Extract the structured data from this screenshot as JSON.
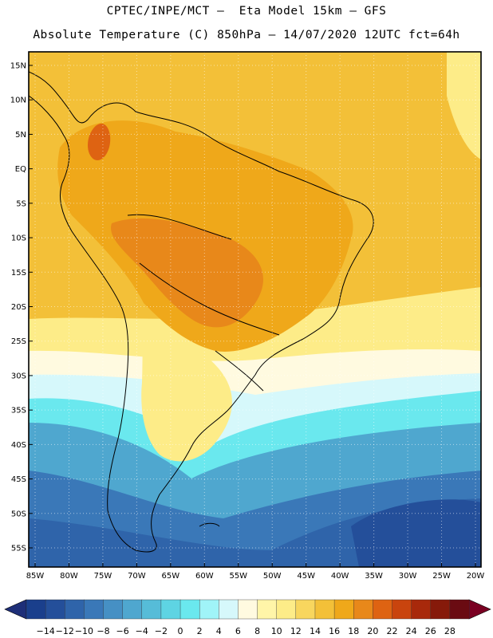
{
  "title_line1": "CPTEC/INPE/MCT –  Eta Model 15km – GFS",
  "title_line2": "Absolute Temperature (C) 850hPa – 14/07/2020 12UTC fct=64h",
  "map": {
    "lat_labels": [
      "15N",
      "10N",
      "5N",
      "EQ",
      "5S",
      "10S",
      "15S",
      "20S",
      "25S",
      "30S",
      "35S",
      "40S",
      "45S",
      "50S",
      "55S"
    ],
    "lon_labels": [
      "85W",
      "80W",
      "75W",
      "70W",
      "65W",
      "60W",
      "55W",
      "50W",
      "45W",
      "40W",
      "35W",
      "30W",
      "25W",
      "20W"
    ]
  },
  "colorbar": {
    "labels": [
      "-14",
      "-12",
      "-10",
      "-8",
      "-6",
      "-4",
      "-2",
      "0",
      "2",
      "4",
      "6",
      "8",
      "10",
      "12",
      "14",
      "16",
      "18",
      "20",
      "22",
      "24",
      "26",
      "28"
    ],
    "colors": [
      "#1a3f8c",
      "#244f9a",
      "#2f64aa",
      "#3a78b8",
      "#4690c4",
      "#4fa7cf",
      "#56bcd8",
      "#5ed4e3",
      "#6ae8ee",
      "#a0f4f8",
      "#d6f8fb",
      "#fffae0",
      "#fff5a8",
      "#fdec88",
      "#f8d65e",
      "#f3c038",
      "#efa81a",
      "#e8881a",
      "#de6312",
      "#c9440e",
      "#a8290b",
      "#861a0a",
      "#6a0b12"
    ],
    "left_arrow_color": "#1e2f78",
    "right_arrow_color": "#7a0022"
  },
  "field_colors": {
    "ocean_warm": "#f3c038",
    "land_hot": "#efa81a",
    "land_very_hot": "#e8881a",
    "andes_peak": "#de6312",
    "mid_light": "#fdec88",
    "cream": "#fffae0",
    "pale": "#d6f8fb",
    "cyan": "#6ae8ee",
    "teal": "#4fa7cf",
    "blue": "#3a78b8",
    "deep_blue": "#2f64aa",
    "darkest": "#244f9a",
    "coast": "#000000"
  }
}
